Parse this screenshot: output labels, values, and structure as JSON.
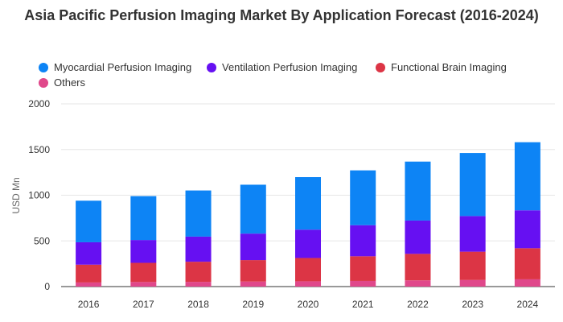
{
  "chart_data": {
    "type": "bar",
    "stacked": true,
    "title": "Asia Pacific Perfusion Imaging Market By Application Forecast (2016-2024)",
    "ylabel": "USD Mn",
    "xlabel": "",
    "ylim": [
      0,
      2000
    ],
    "yticks": [
      0,
      500,
      1000,
      1500,
      2000
    ],
    "grid": true,
    "legend_position": "top-left",
    "categories": [
      "2016",
      "2017",
      "2018",
      "2019",
      "2020",
      "2021",
      "2022",
      "2023",
      "2024"
    ],
    "series": [
      {
        "name": "Others",
        "color": "#e0488b",
        "values": [
          45,
          50,
          52,
          55,
          58,
          62,
          68,
          72,
          80
        ]
      },
      {
        "name": "Functional Brain Imaging",
        "color": "#dc3545",
        "values": [
          195,
          210,
          220,
          235,
          255,
          270,
          290,
          310,
          340
        ]
      },
      {
        "name": "Ventilation Perfusion Imaging",
        "color": "#6610f2",
        "values": [
          245,
          250,
          275,
          290,
          310,
          340,
          365,
          390,
          415
        ]
      },
      {
        "name": "Myocardial Perfusion Imaging",
        "color": "#0d84f5",
        "values": [
          455,
          480,
          505,
          535,
          575,
          600,
          645,
          690,
          745
        ]
      }
    ],
    "legend_order": [
      "Myocardial Perfusion Imaging",
      "Ventilation Perfusion Imaging",
      "Functional Brain Imaging",
      "Others"
    ]
  }
}
